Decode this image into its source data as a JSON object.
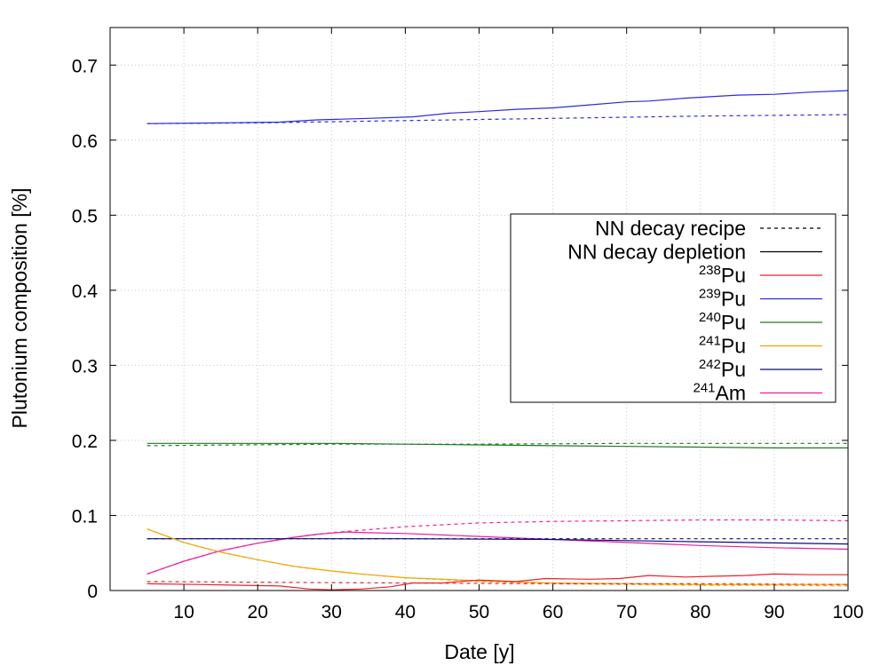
{
  "chart_data": {
    "type": "line",
    "xlabel": "Date [y]",
    "ylabel": "Plutonium composition [%]",
    "xlim": [
      0,
      100
    ],
    "ylim": [
      0,
      0.75
    ],
    "xticks": [
      "10",
      "20",
      "30",
      "40",
      "50",
      "60",
      "70",
      "80",
      "90",
      "100"
    ],
    "yticks": [
      "0",
      "0.1",
      "0.2",
      "0.3",
      "0.4",
      "0.5",
      "0.6",
      "0.7"
    ],
    "grid": true,
    "legend_position": "right-center",
    "legend": {
      "style_entries": [
        {
          "label": "NN decay recipe",
          "dash": "dashed",
          "color": "#000000"
        },
        {
          "label": "NN decay depletion",
          "dash": "solid",
          "color": "#000000"
        }
      ],
      "isotope_entries": [
        {
          "sup": "238",
          "base": "Pu",
          "color": "#e8242b"
        },
        {
          "sup": "239",
          "base": "Pu",
          "color": "#2b2be0"
        },
        {
          "sup": "240",
          "base": "Pu",
          "color": "#1f7a1f"
        },
        {
          "sup": "241",
          "base": "Pu",
          "color": "#f5a300"
        },
        {
          "sup": "242",
          "base": "Pu",
          "color": "#0a0a78"
        },
        {
          "sup": "241",
          "base": "Am",
          "color": "#ee1e9a"
        }
      ]
    },
    "series": [
      {
        "isotope": "239Pu",
        "style": "recipe",
        "color": "#2b2be0",
        "x": [
          5,
          20,
          40,
          60,
          80,
          100
        ],
        "y": [
          0.622,
          0.623,
          0.626,
          0.629,
          0.632,
          0.634
        ]
      },
      {
        "isotope": "239Pu",
        "style": "depletion",
        "color": "#2b2be0",
        "x": [
          5,
          15,
          23,
          28,
          35,
          41,
          46,
          50,
          55,
          60,
          65,
          70,
          73,
          78,
          85,
          90,
          95,
          100
        ],
        "y": [
          0.622,
          0.623,
          0.624,
          0.627,
          0.629,
          0.631,
          0.636,
          0.638,
          0.641,
          0.643,
          0.647,
          0.651,
          0.652,
          0.656,
          0.66,
          0.661,
          0.664,
          0.666
        ]
      },
      {
        "isotope": "240Pu",
        "style": "recipe",
        "color": "#1f7a1f",
        "x": [
          5,
          30,
          50,
          70,
          100
        ],
        "y": [
          0.193,
          0.195,
          0.195,
          0.196,
          0.196
        ]
      },
      {
        "isotope": "240Pu",
        "style": "depletion",
        "color": "#1f7a1f",
        "x": [
          5,
          20,
          30,
          40,
          50,
          60,
          70,
          80,
          90,
          100
        ],
        "y": [
          0.196,
          0.196,
          0.196,
          0.195,
          0.194,
          0.193,
          0.192,
          0.191,
          0.19,
          0.19
        ]
      },
      {
        "isotope": "241Am",
        "style": "recipe",
        "color": "#ee1e9a",
        "x": [
          5,
          10,
          15,
          20,
          25,
          30,
          35,
          40,
          50,
          60,
          70,
          80,
          90,
          100
        ],
        "y": [
          0.022,
          0.039,
          0.053,
          0.063,
          0.071,
          0.077,
          0.081,
          0.085,
          0.09,
          0.092,
          0.093,
          0.094,
          0.094,
          0.093
        ]
      },
      {
        "isotope": "241Am",
        "style": "depletion",
        "color": "#ee1e9a",
        "x": [
          5,
          10,
          15,
          20,
          25,
          28,
          32,
          35,
          40,
          45,
          50,
          60,
          70,
          80,
          90,
          100
        ],
        "y": [
          0.022,
          0.039,
          0.053,
          0.063,
          0.071,
          0.075,
          0.078,
          0.077,
          0.076,
          0.074,
          0.072,
          0.068,
          0.064,
          0.06,
          0.057,
          0.055
        ]
      },
      {
        "isotope": "242Pu",
        "style": "recipe",
        "color": "#0a0a78",
        "x": [
          5,
          50,
          100
        ],
        "y": [
          0.069,
          0.069,
          0.069
        ]
      },
      {
        "isotope": "242Pu",
        "style": "depletion",
        "color": "#0a0a78",
        "x": [
          5,
          40,
          60,
          80,
          100
        ],
        "y": [
          0.069,
          0.069,
          0.068,
          0.065,
          0.062
        ]
      },
      {
        "isotope": "241Pu",
        "style": "recipe",
        "color": "#f5a300",
        "x": [
          5,
          10,
          15,
          20,
          25,
          30,
          35,
          40,
          50,
          60,
          70,
          80,
          90,
          100
        ],
        "y": [
          0.082,
          0.064,
          0.051,
          0.041,
          0.032,
          0.026,
          0.021,
          0.017,
          0.012,
          0.009,
          0.008,
          0.007,
          0.007,
          0.006
        ]
      },
      {
        "isotope": "241Pu",
        "style": "depletion",
        "color": "#f5a300",
        "x": [
          5,
          10,
          15,
          20,
          25,
          30,
          35,
          40,
          50,
          60,
          70,
          80,
          90,
          100
        ],
        "y": [
          0.082,
          0.064,
          0.051,
          0.041,
          0.032,
          0.026,
          0.021,
          0.017,
          0.013,
          0.01,
          0.009,
          0.008,
          0.008,
          0.008
        ]
      },
      {
        "isotope": "238Pu",
        "style": "recipe",
        "color": "#e8242b",
        "x": [
          5,
          20,
          40,
          60,
          80,
          100
        ],
        "y": [
          0.012,
          0.011,
          0.01,
          0.009,
          0.009,
          0.008
        ]
      },
      {
        "isotope": "238Pu",
        "style": "depletion",
        "color": "#e8242b",
        "x": [
          5,
          12,
          18,
          23,
          27,
          30,
          34,
          38,
          41,
          45,
          50,
          55,
          59,
          65,
          69,
          73,
          78,
          82,
          86,
          90,
          95,
          100
        ],
        "y": [
          0.009,
          0.008,
          0.007,
          0.006,
          0.002,
          0.001,
          0.002,
          0.005,
          0.01,
          0.01,
          0.014,
          0.012,
          0.016,
          0.015,
          0.016,
          0.02,
          0.018,
          0.019,
          0.02,
          0.022,
          0.021,
          0.021
        ]
      }
    ]
  }
}
